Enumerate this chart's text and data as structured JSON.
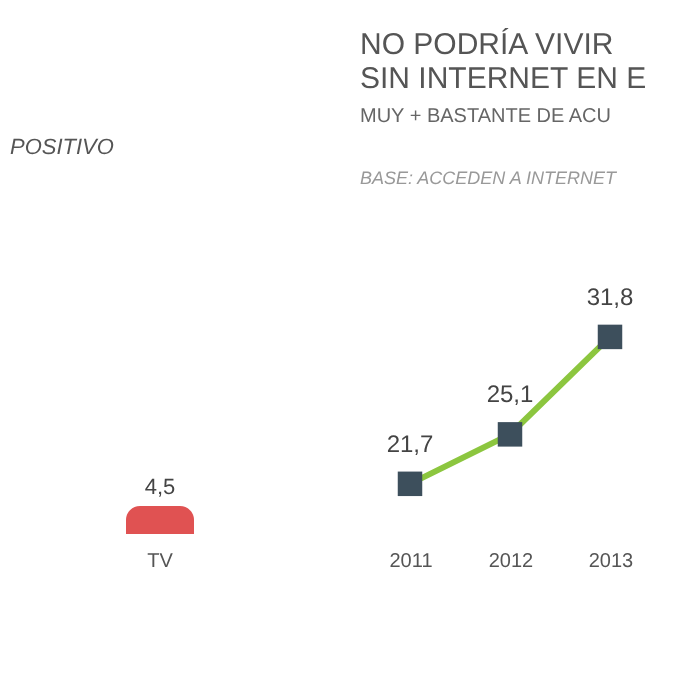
{
  "chart_data": [
    {
      "type": "bar",
      "title": "POSITIVO",
      "categories": [
        "TV"
      ],
      "values": [
        4.5
      ],
      "color": "#e05252",
      "value_labels": [
        "4,5"
      ],
      "tick_labels": "x"
    },
    {
      "type": "line",
      "title": [
        "NO PODRÍA VIVIR",
        "SIN INTERNET EN E"
      ],
      "subtitle": "MUY + BASTANTE DE ACU",
      "annotations": [
        "BASE: ACCEDEN A INTERNET"
      ],
      "categories": [
        "2011",
        "2012",
        "2013"
      ],
      "series": [
        {
          "color": "#8cc63f",
          "values": [
            21.7,
            25.1,
            31.8
          ],
          "value_labels": [
            "21,7",
            "25,1",
            "31,8"
          ]
        }
      ],
      "marker": "square",
      "tick_labels": "x"
    }
  ]
}
